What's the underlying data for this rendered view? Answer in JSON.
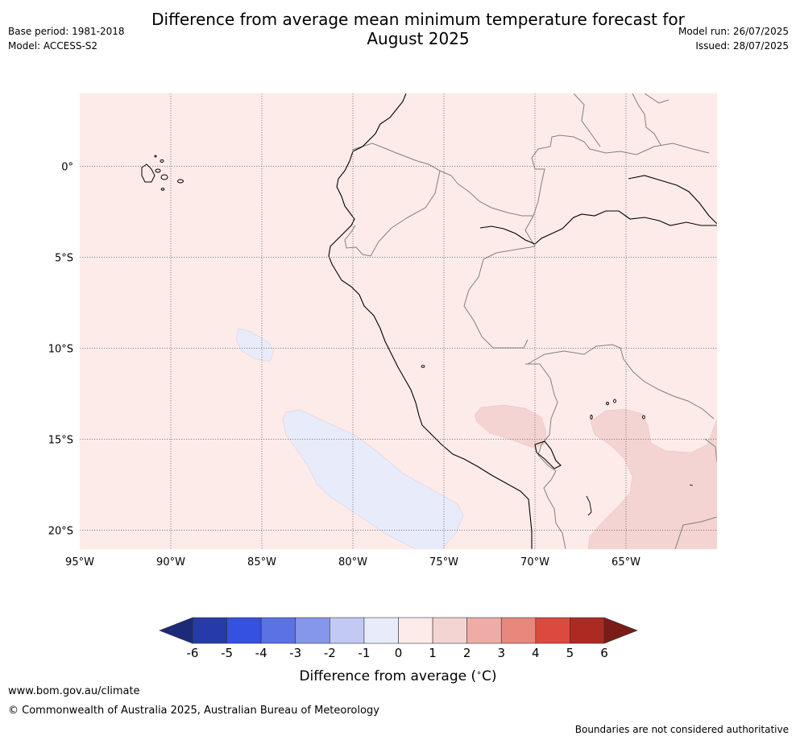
{
  "header": {
    "base_period": "Base period: 1981-2018",
    "model": "Model: ACCESS-S2",
    "title_line1": "Difference from average mean minimum temperature forecast for",
    "title_line2": "August 2025",
    "model_run": "Model run: 26/07/2025",
    "issued": "Issued: 28/07/2025"
  },
  "map": {
    "lon_ticks": [
      {
        "value": -95,
        "label": "95°W"
      },
      {
        "value": -90,
        "label": "90°W"
      },
      {
        "value": -85,
        "label": "85°W"
      },
      {
        "value": -80,
        "label": "80°W"
      },
      {
        "value": -75,
        "label": "75°W"
      },
      {
        "value": -70,
        "label": "70°W"
      },
      {
        "value": -65,
        "label": "65°W"
      }
    ],
    "lat_ticks": [
      {
        "value": 0,
        "label": "0°"
      },
      {
        "value": -5,
        "label": "5°S"
      },
      {
        "value": -10,
        "label": "10°S"
      },
      {
        "value": -15,
        "label": "15°S"
      },
      {
        "value": -20,
        "label": "20°S"
      }
    ],
    "background_color": "#fcebe9"
  },
  "colorbar": {
    "label": "Difference from average ($^\\circ$C)",
    "label_text": "Difference from average (",
    "label_unit": "C)",
    "ticks": [
      "-6",
      "-5",
      "-4",
      "-3",
      "-2",
      "-1",
      "0",
      "1",
      "2",
      "3",
      "4",
      "5",
      "6"
    ],
    "colors": [
      "#263ba8",
      "#3451e0",
      "#5b72e4",
      "#8597ea",
      "#c2c9f3",
      "#e8ebfa",
      "#fcebe9",
      "#f4d4d2",
      "#efaca6",
      "#e8877c",
      "#dc4a3f",
      "#ad2a22"
    ],
    "under_color": "#1d2a78",
    "over_color": "#7a1d18"
  },
  "footer": {
    "url": "www.bom.gov.au/climate",
    "copyright": "© Commonwealth of Australia 2025, Australian Bureau of Meteorology",
    "note": "Boundaries are not considered authoritative"
  }
}
